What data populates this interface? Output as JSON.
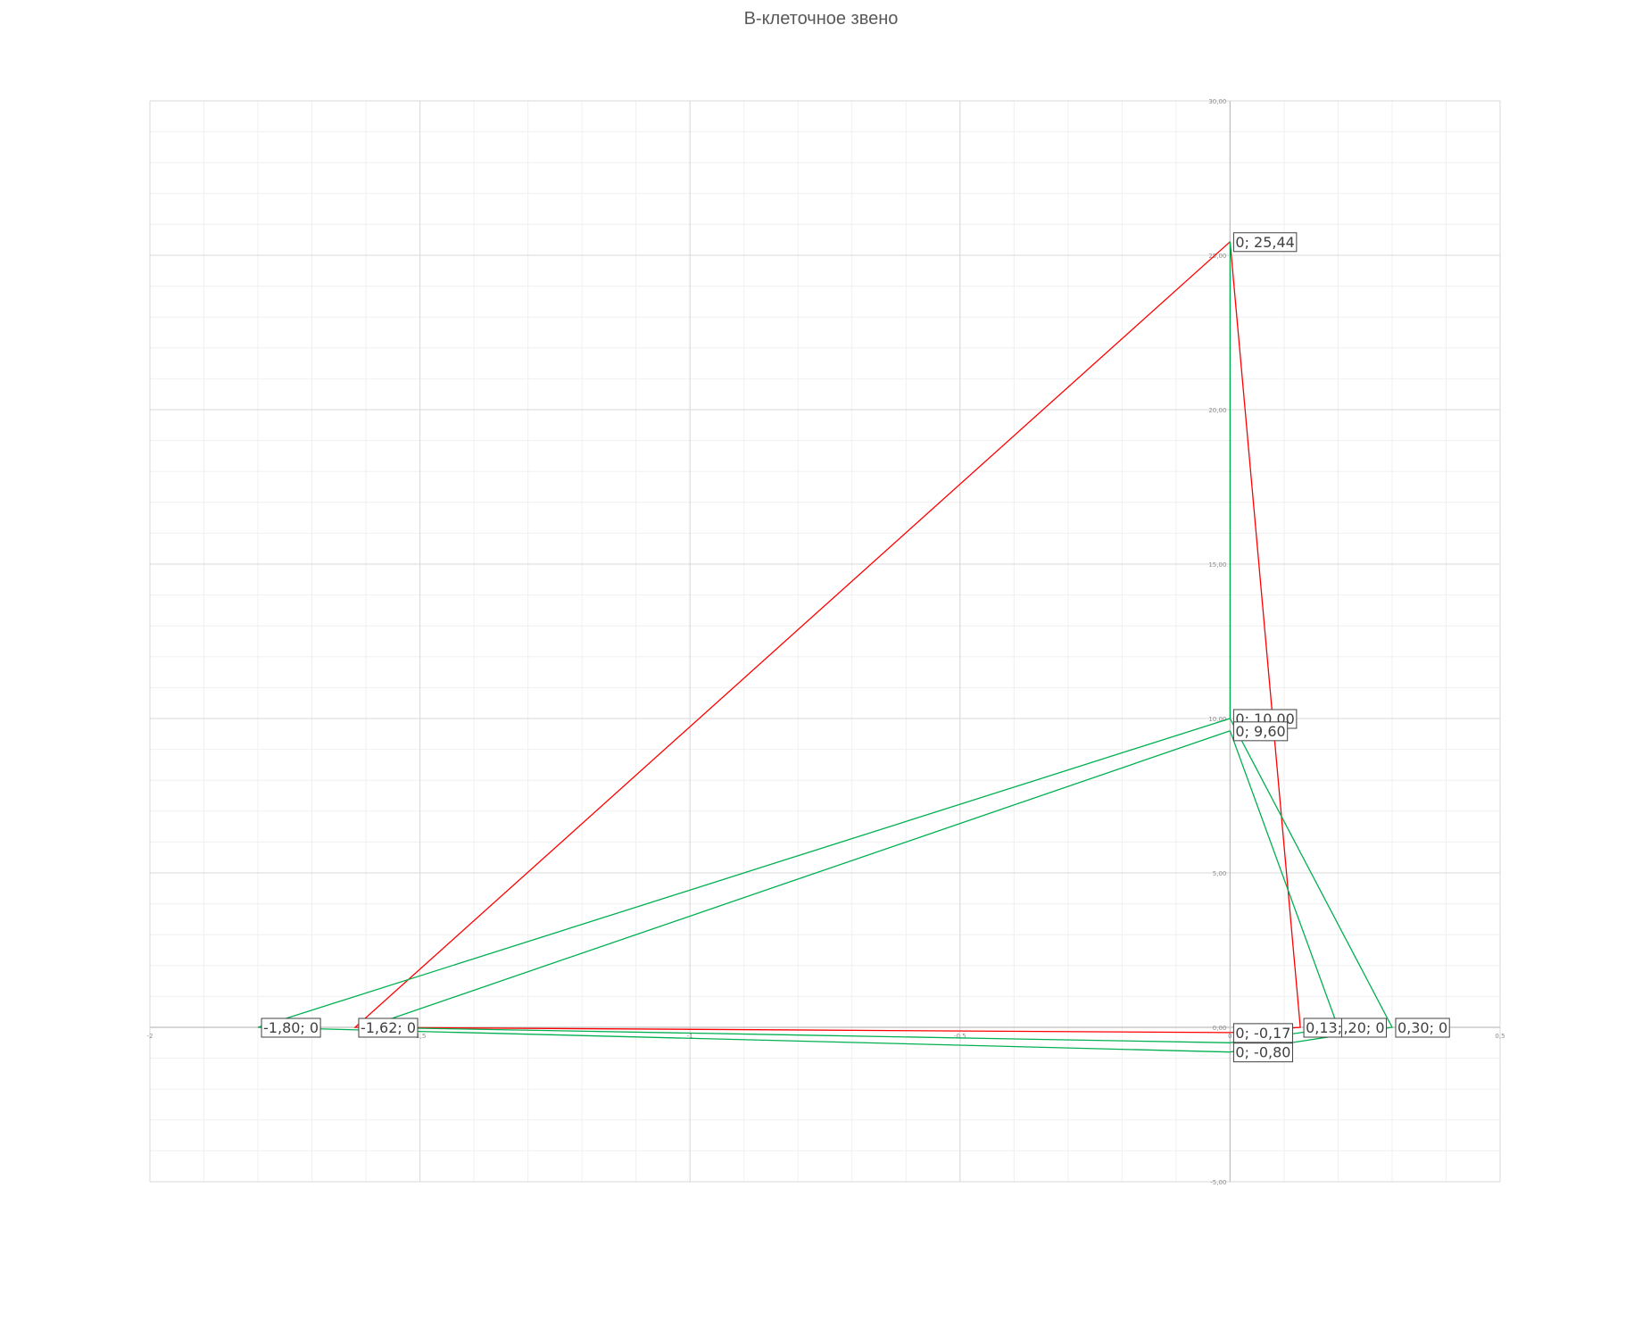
{
  "chart_data": {
    "type": "line",
    "title": "В-клеточное звено",
    "xlabel": "",
    "ylabel": "",
    "xlim": [
      -2,
      0.5
    ],
    "ylim": [
      -5,
      30
    ],
    "grid": true,
    "x_ticks": [
      {
        "value": -2,
        "label": "-2"
      },
      {
        "value": -1.5,
        "label": "-1,5"
      },
      {
        "value": -1,
        "label": "-1"
      },
      {
        "value": -0.5,
        "label": "-0,5"
      },
      {
        "value": 0,
        "label": "0"
      },
      {
        "value": 0.5,
        "label": "0,5"
      }
    ],
    "y_ticks": [
      {
        "value": 30,
        "label": "30,00"
      },
      {
        "value": 25,
        "label": "25,00"
      },
      {
        "value": 20,
        "label": "20,00"
      },
      {
        "value": 15,
        "label": "15,00"
      },
      {
        "value": 10,
        "label": "10,00"
      },
      {
        "value": 5,
        "label": "5,00"
      },
      {
        "value": 0,
        "label": "0,00"
      },
      {
        "value": -5,
        "label": "-5,00"
      }
    ],
    "series": [
      {
        "color": "#ff0000",
        "points": [
          [
            0,
            25.44
          ],
          [
            0.13,
            0
          ],
          [
            0,
            -0.17
          ],
          [
            -1.62,
            0
          ],
          [
            0,
            25.44
          ]
        ]
      },
      {
        "color": "#00b050",
        "points": [
          [
            0,
            25.44
          ],
          [
            0,
            10.0
          ],
          [
            -1.8,
            0
          ],
          [
            0,
            -0.8
          ],
          [
            0.3,
            0
          ],
          [
            0,
            10.0
          ]
        ]
      },
      {
        "color": "#00b050",
        "points": [
          [
            0,
            9.6
          ],
          [
            -1.6,
            0
          ],
          [
            0,
            -0.5
          ],
          [
            0.2,
            0
          ],
          [
            0,
            9.6
          ]
        ]
      }
    ],
    "data_labels": [
      {
        "x": 0,
        "y": 25.44,
        "text": "0; 25,44"
      },
      {
        "x": 0,
        "y": 10.0,
        "text": "0; 10,00"
      },
      {
        "x": 0,
        "y": 9.6,
        "text": "0; 9,60"
      },
      {
        "x": 0,
        "y": -0.17,
        "text": "0; -0,17"
      },
      {
        "x": 0,
        "y": -0.8,
        "text": "0; -0,80"
      },
      {
        "x": -1.8,
        "y": 0,
        "text": "-1,80; 0"
      },
      {
        "x": -1.6,
        "y": 0,
        "text": "-1,6"
      },
      {
        "x": -1.62,
        "y": 0,
        "text": "-1,62; 0"
      },
      {
        "x": 0.13,
        "y": 0,
        "text": "0,13; 0"
      },
      {
        "x": 0.2,
        "y": 0,
        "text": ",20; 0"
      },
      {
        "x": 0.3,
        "y": 0,
        "text": "0,30; 0"
      }
    ]
  }
}
